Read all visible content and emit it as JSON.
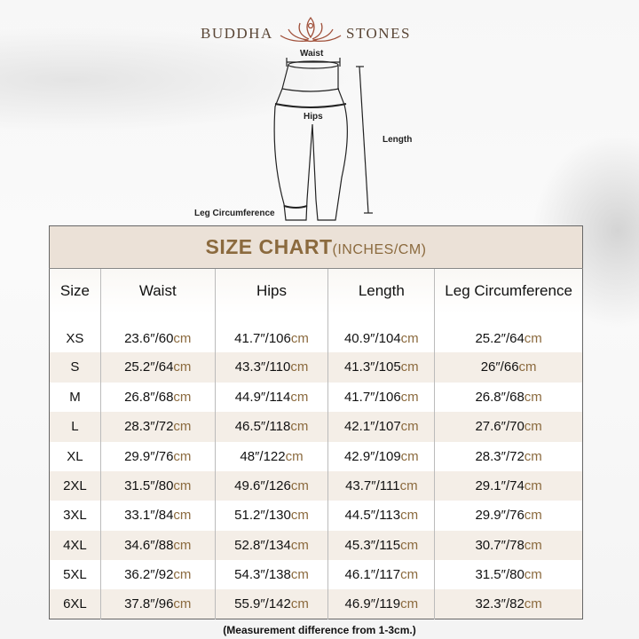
{
  "brand": {
    "left": "BUDDHA",
    "right": "STONES",
    "logo_icon": "lotus-meditation-icon",
    "color": "#a0503a"
  },
  "diagram": {
    "waist": "Waist",
    "hips": "Hips",
    "length": "Length",
    "leg": "Leg Circumference"
  },
  "chart": {
    "title": "SIZE CHART",
    "title_unit": "(INCHES/CM)",
    "headers": [
      "Size",
      "Waist",
      "Hips",
      "Length",
      "Leg Circumference"
    ],
    "unit": "cm",
    "rows": [
      {
        "size": "XS",
        "waist": "23.6″/60",
        "hips": "41.7″/106",
        "length": "40.9″/104",
        "leg": "25.2″/64"
      },
      {
        "size": "S",
        "waist": "25.2″/64",
        "hips": "43.3″/110",
        "length": "41.3″/105",
        "leg": "26″/66"
      },
      {
        "size": "M",
        "waist": "26.8″/68",
        "hips": "44.9″/114",
        "length": "41.7″/106",
        "leg": "26.8″/68"
      },
      {
        "size": "L",
        "waist": "28.3″/72",
        "hips": "46.5″/118",
        "length": "42.1″/107",
        "leg": "27.6″/70"
      },
      {
        "size": "XL",
        "waist": "29.9″/76",
        "hips": "48″/122",
        "length": "42.9″/109",
        "leg": "28.3″/72"
      },
      {
        "size": "2XL",
        "waist": "31.5″/80",
        "hips": "49.6″/126",
        "length": "43.7″/111",
        "leg": "29.1″/74"
      },
      {
        "size": "3XL",
        "waist": "33.1″/84",
        "hips": "51.2″/130",
        "length": "44.5″/113",
        "leg": "29.9″/76"
      },
      {
        "size": "4XL",
        "waist": "34.6″/88",
        "hips": "52.8″/134",
        "length": "45.3″/115",
        "leg": "30.7″/78"
      },
      {
        "size": "5XL",
        "waist": "36.2″/92",
        "hips": "54.3″/138",
        "length": "46.1″/117",
        "leg": "31.5″/80"
      },
      {
        "size": "6XL",
        "waist": "37.8″/96",
        "hips": "55.9″/142",
        "length": "46.9″/119",
        "leg": "32.3″/82"
      }
    ],
    "colors": {
      "title_bg": "#ebe1d7",
      "accent": "#8b6a3e",
      "alt_row": "#f4eee7"
    }
  },
  "note": "(Measurement difference from 1-3cm.)"
}
